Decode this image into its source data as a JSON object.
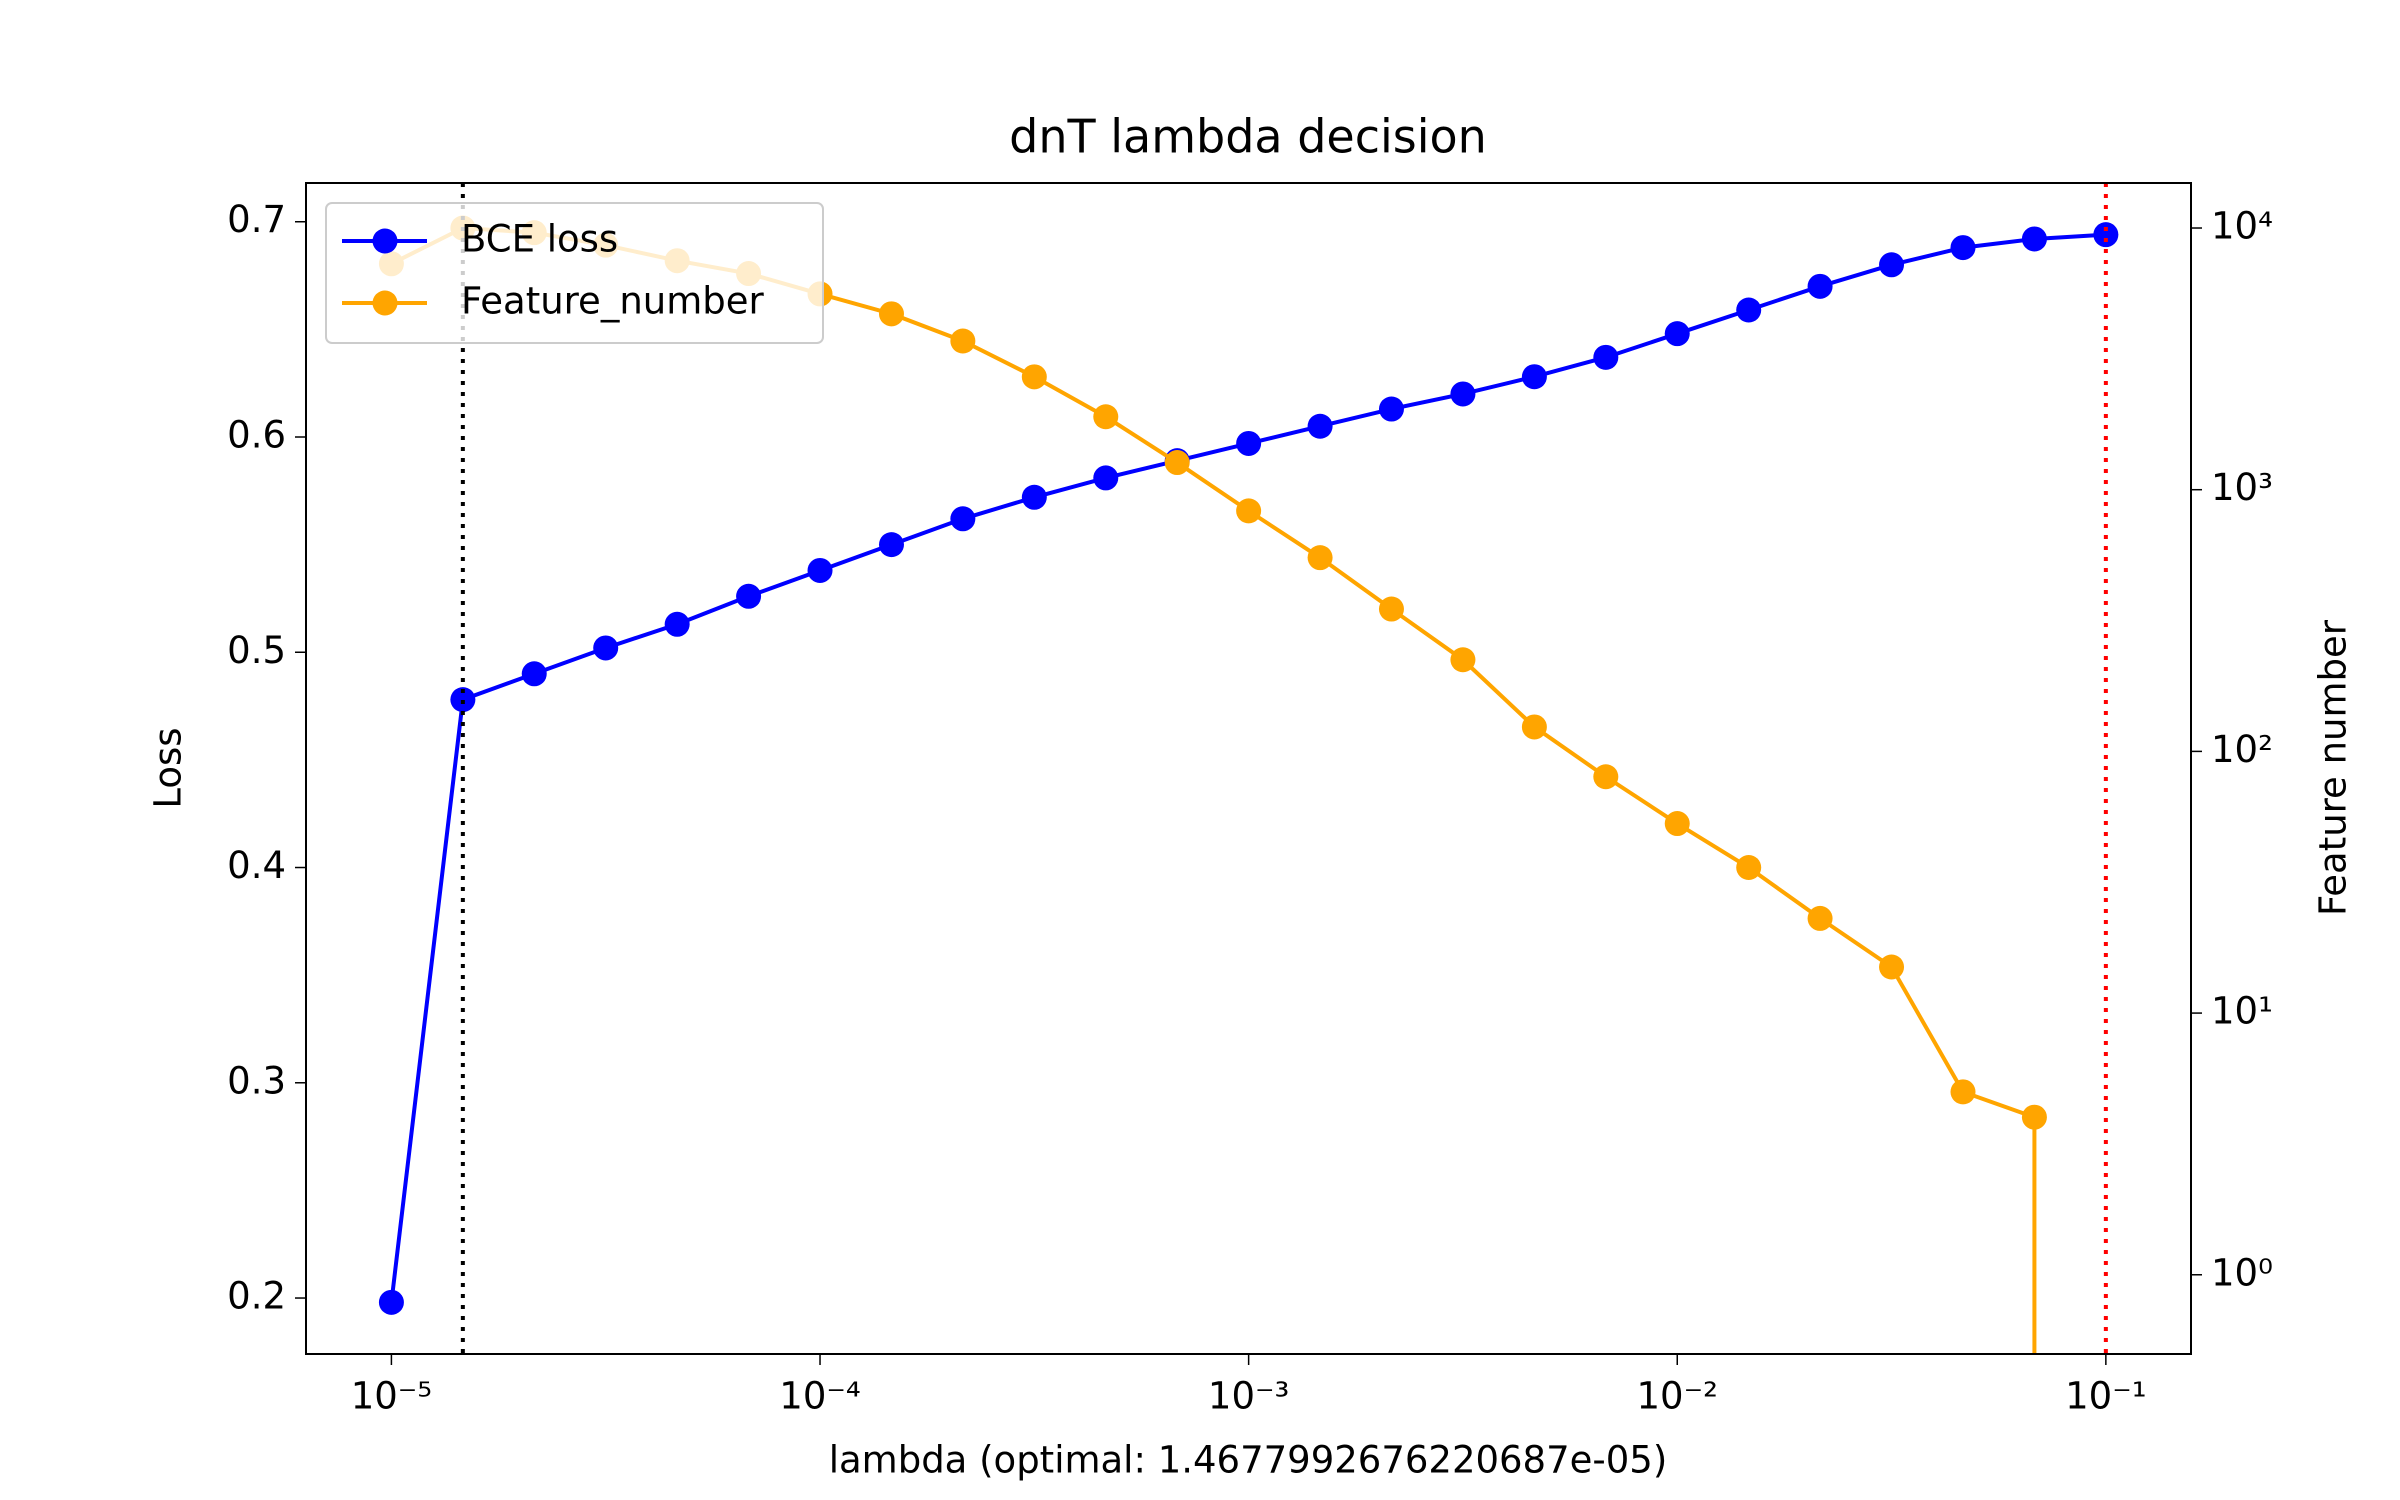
{
  "chart_data": {
    "type": "line",
    "title": "dnT lambda decision",
    "xlabel": "lambda (optimal: 1.4677992676220687e-05)",
    "ylabel": "Loss",
    "y2label": "Feature number",
    "xscale": "log",
    "y2scale": "log",
    "x": [
      1e-05,
      1.468e-05,
      2.154e-05,
      3.162e-05,
      4.642e-05,
      6.813e-05,
      0.0001,
      0.0001468,
      0.0002154,
      0.0003162,
      0.0004642,
      0.0006813,
      0.001,
      0.001468,
      0.002154,
      0.003162,
      0.004642,
      0.006813,
      0.01,
      0.01468,
      0.02154,
      0.03162,
      0.04642,
      0.06813,
      0.1
    ],
    "series": [
      {
        "name": "BCE loss",
        "color": "blue",
        "axis": "y",
        "values": [
          0.198,
          0.478,
          0.49,
          0.502,
          0.513,
          0.526,
          0.538,
          0.55,
          0.562,
          0.572,
          0.581,
          0.589,
          0.597,
          0.605,
          0.613,
          0.62,
          0.628,
          0.637,
          0.648,
          0.659,
          0.67,
          0.68,
          0.688,
          0.692,
          0.694
        ]
      },
      {
        "name": "Feature_number",
        "color": "orange",
        "axis": "y2",
        "values": [
          7300,
          10000,
          9600,
          8600,
          7500,
          6700,
          5600,
          4700,
          3700,
          2700,
          1900,
          1270,
          830,
          550,
          350,
          224,
          124,
          80,
          53,
          36,
          23,
          15,
          5,
          4,
          0
        ]
      }
    ],
    "vlines": [
      {
        "x": 1.4677992676220687e-05,
        "color": "black"
      },
      {
        "x": 0.1,
        "color": "red"
      }
    ],
    "xlim": [
      6.32e-06,
      0.158
    ],
    "ylim": [
      0.174,
      0.718
    ],
    "y2lim": [
      0.498,
      14860
    ],
    "xticks": [
      {
        "value": 1e-05,
        "label": "10⁻⁵"
      },
      {
        "value": 0.0001,
        "label": "10⁻⁴"
      },
      {
        "value": 0.001,
        "label": "10⁻³"
      },
      {
        "value": 0.01,
        "label": "10⁻²"
      },
      {
        "value": 0.1,
        "label": "10⁻¹"
      }
    ],
    "yticks": [
      0.2,
      0.3,
      0.4,
      0.5,
      0.6,
      0.7
    ],
    "y2ticks": [
      {
        "value": 1,
        "label": "10⁰"
      },
      {
        "value": 10,
        "label": "10¹"
      },
      {
        "value": 100,
        "label": "10²"
      },
      {
        "value": 1000,
        "label": "10³"
      },
      {
        "value": 10000,
        "label": "10⁴"
      }
    ],
    "legend": "upper left"
  }
}
